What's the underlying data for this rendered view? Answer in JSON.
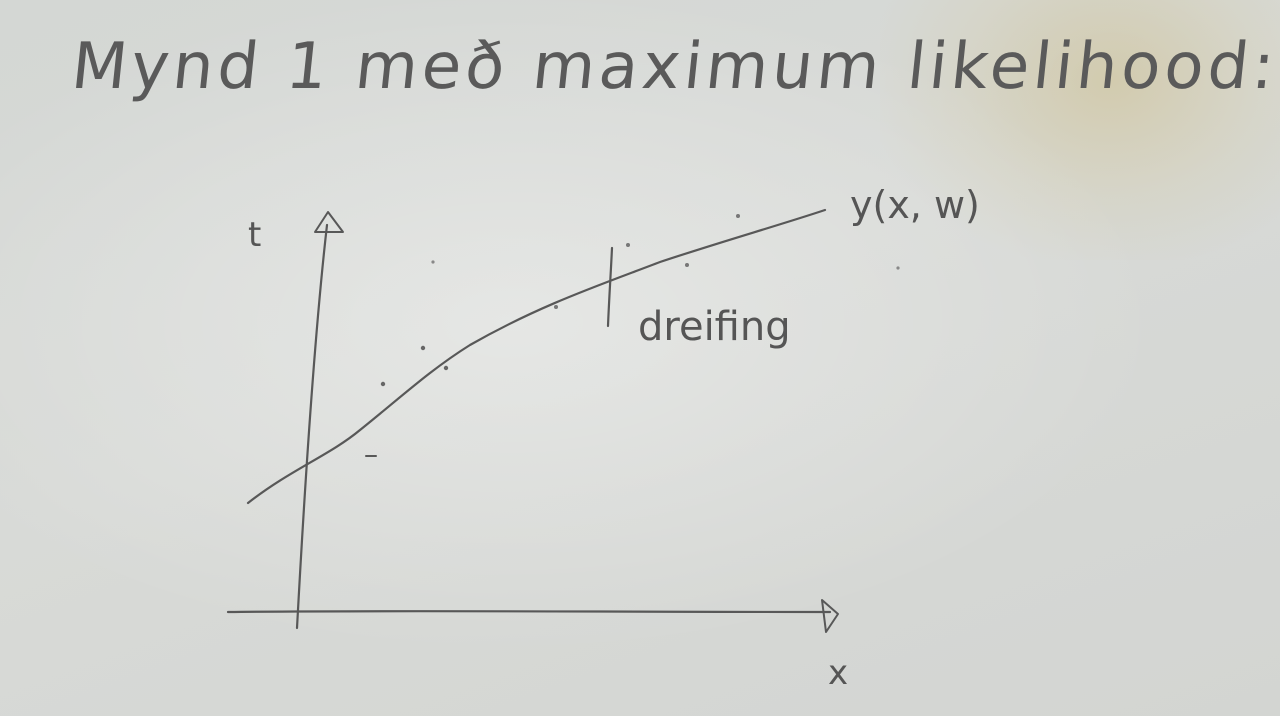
{
  "title": "Mynd 1 með maximum likelihood:",
  "chart": {
    "y_axis_label": "t",
    "x_axis_label": "x",
    "curve_label": "y(x, w)",
    "annotation": "dreifing"
  }
}
